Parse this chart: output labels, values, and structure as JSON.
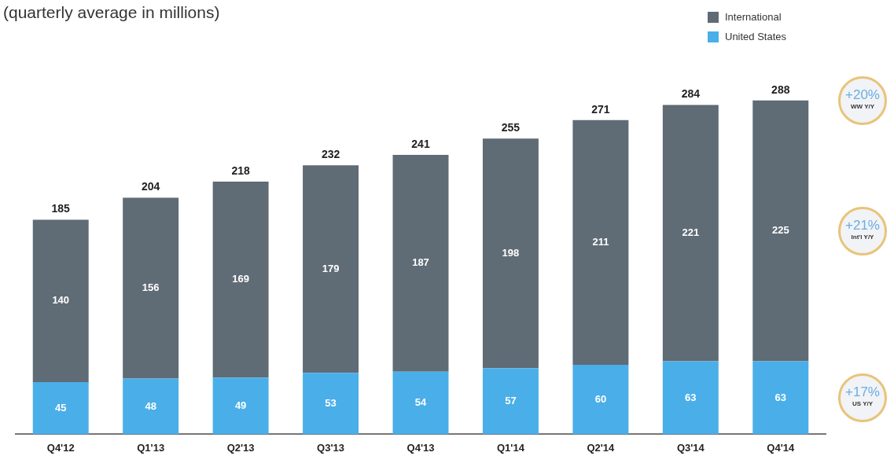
{
  "chart_data": {
    "type": "bar",
    "title": "(quarterly average in millions)",
    "stacked": true,
    "data_labels": true,
    "legend": "top right",
    "grid": false,
    "categories": [
      "Q4'12",
      "Q1'13",
      "Q2'13",
      "Q3'13",
      "Q4'13",
      "Q1'14",
      "Q2'14",
      "Q3'14",
      "Q4'14"
    ],
    "series": [
      {
        "name": "United States",
        "color": "#4aaee8",
        "values": [
          45,
          48,
          49,
          53,
          54,
          57,
          60,
          63,
          63
        ]
      },
      {
        "name": "International",
        "color": "#5f6b75",
        "values": [
          140,
          156,
          169,
          179,
          187,
          198,
          211,
          221,
          225
        ]
      }
    ],
    "totals": [
      "185",
      "204",
      "218",
      "232",
      "241",
      "255",
      "271",
      "284",
      "288"
    ],
    "annotations": [
      "+20% WW Y/Y",
      "+21% Int'l Y/Y",
      "+17% US Y/Y"
    ]
  }
}
